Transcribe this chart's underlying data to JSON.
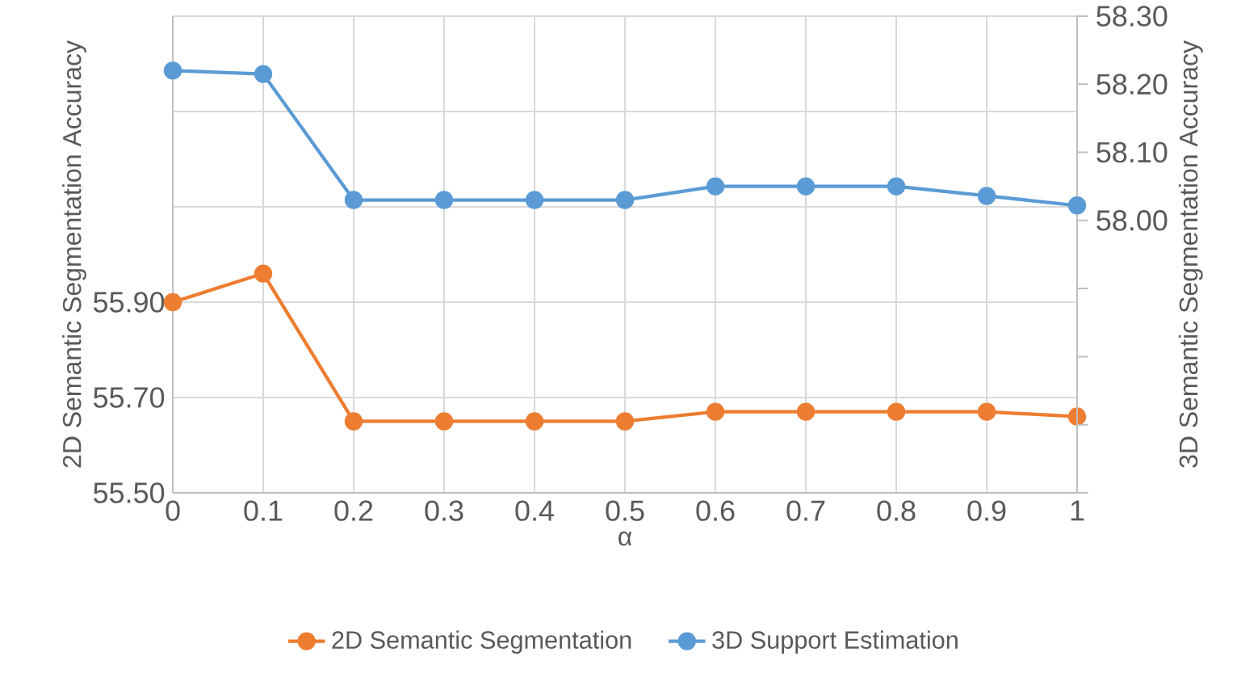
{
  "chart_data": {
    "type": "line",
    "x": [
      0,
      0.1,
      0.2,
      0.3,
      0.4,
      0.5,
      0.6,
      0.7,
      0.8,
      0.9,
      1
    ],
    "xlabel": "α",
    "ylabel": "2D Semantic Segmentation Accuracy",
    "y2label": "3D Semantic Segmentation Accuracy",
    "series": [
      {
        "name": "2D Semantic Segmentation",
        "color": "#ed7d31",
        "values": [
          55.9,
          55.96,
          55.65,
          55.65,
          55.65,
          55.65,
          55.67,
          55.67,
          55.67,
          55.67,
          55.66
        ]
      },
      {
        "name": "3D Support  Estimation",
        "color": "#5b9bd5",
        "axis": "y2",
        "values": [
          58.22,
          58.215,
          58.03,
          58.03,
          58.03,
          58.03,
          58.05,
          58.05,
          58.05,
          58.036,
          58.022
        ]
      }
    ],
    "xlim": [
      0,
      1
    ],
    "xticks": [
      0,
      0.1,
      0.2,
      0.3,
      0.4,
      0.5,
      0.6,
      0.7,
      0.8,
      0.9,
      1
    ],
    "ylim": [
      55.5,
      56.5
    ],
    "yticks": [
      {
        "value": 55.5,
        "label": "55.50"
      },
      {
        "value": 55.7,
        "label": "55.70"
      },
      {
        "value": 55.9,
        "label": "55.90"
      },
      {
        "value": 56.1,
        "label": null
      },
      {
        "value": 56.3,
        "label": null
      },
      {
        "value": 56.5,
        "label": null
      }
    ],
    "y2lim": [
      57.6,
      58.3
    ],
    "y2ticks": [
      {
        "value": 57.6,
        "label": null
      },
      {
        "value": 57.7,
        "label": null
      },
      {
        "value": 57.8,
        "label": null
      },
      {
        "value": 57.9,
        "label": null
      },
      {
        "value": 58.0,
        "label": "58.00"
      },
      {
        "value": 58.1,
        "label": "58.10"
      },
      {
        "value": 58.2,
        "label": "58.20"
      },
      {
        "value": 58.3,
        "label": "58.30"
      }
    ],
    "grid": true,
    "legend": "bottom",
    "marker": "circle",
    "line_style": "solid"
  }
}
